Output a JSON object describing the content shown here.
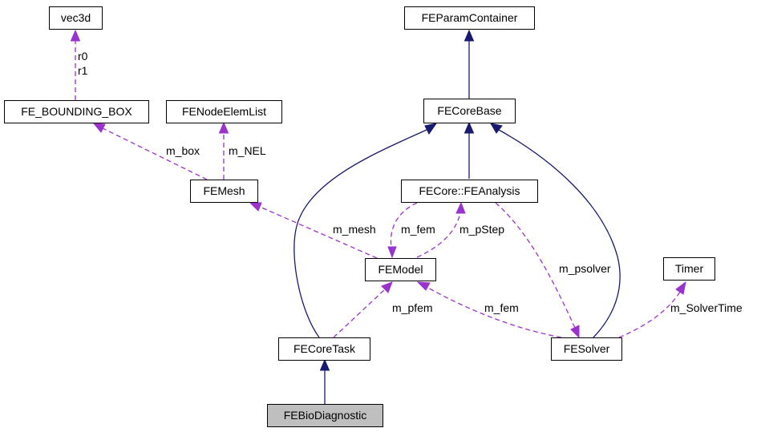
{
  "colors": {
    "inheritance": "#191970",
    "member": "#9a32cd",
    "highlight_fill": "#bfbfbf"
  },
  "nodes": {
    "vec3d": "vec3d",
    "fe_bounding_box": "FE_BOUNDING_BOX",
    "fenode_elem_list": "FENodeElemList",
    "femesh": "FEMesh",
    "feparam_container": "FEParamContainer",
    "fecore_base": "FECoreBase",
    "fecore_feanalysis": "FECore::FEAnalysis",
    "femodel": "FEModel",
    "timer": "Timer",
    "fecore_task": "FECoreTask",
    "fesolver": "FESolver",
    "febio_diagnostic": "FEBioDiagnostic"
  },
  "edge_labels": {
    "r0": "r0",
    "r1": "r1",
    "m_box": "m_box",
    "m_nel": "m_NEL",
    "m_mesh": "m_mesh",
    "m_fem_analysis": "m_fem",
    "m_pstep": "m_pStep",
    "m_psolver": "m_psolver",
    "m_pfem": "m_pfem",
    "m_fem_solver": "m_fem",
    "m_solver_time": "m_SolverTime"
  }
}
